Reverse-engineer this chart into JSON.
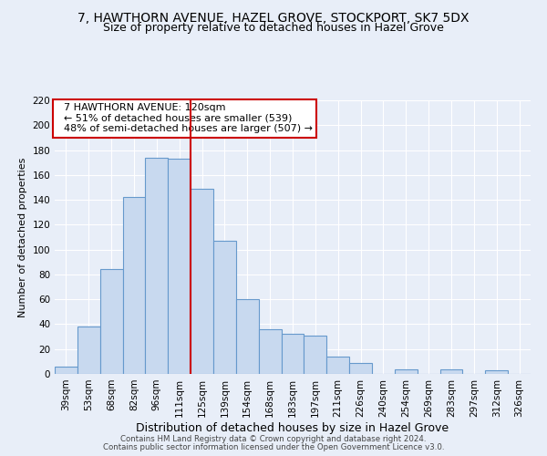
{
  "title": "7, HAWTHORN AVENUE, HAZEL GROVE, STOCKPORT, SK7 5DX",
  "subtitle": "Size of property relative to detached houses in Hazel Grove",
  "xlabel": "Distribution of detached houses by size in Hazel Grove",
  "ylabel": "Number of detached properties",
  "footer_line1": "Contains HM Land Registry data © Crown copyright and database right 2024.",
  "footer_line2": "Contains public sector information licensed under the Open Government Licence v3.0.",
  "bar_labels": [
    "39sqm",
    "53sqm",
    "68sqm",
    "82sqm",
    "96sqm",
    "111sqm",
    "125sqm",
    "139sqm",
    "154sqm",
    "168sqm",
    "183sqm",
    "197sqm",
    "211sqm",
    "226sqm",
    "240sqm",
    "254sqm",
    "269sqm",
    "283sqm",
    "297sqm",
    "312sqm",
    "326sqm"
  ],
  "bar_values": [
    6,
    38,
    84,
    142,
    174,
    173,
    149,
    107,
    60,
    36,
    32,
    31,
    14,
    9,
    0,
    4,
    0,
    4,
    0,
    3,
    0
  ],
  "bar_color": "#c8d9ef",
  "bar_edge_color": "#6699cc",
  "red_line_x": 5.5,
  "annotation_title": "7 HAWTHORN AVENUE: 120sqm",
  "annotation_line1": "← 51% of detached houses are smaller (539)",
  "annotation_line2": "48% of semi-detached houses are larger (507) →",
  "annotation_box_color": "white",
  "annotation_box_edge_color": "#cc0000",
  "ylim": [
    0,
    220
  ],
  "yticks": [
    0,
    20,
    40,
    60,
    80,
    100,
    120,
    140,
    160,
    180,
    200,
    220
  ],
  "background_color": "#e8eef8",
  "plot_background_color": "#e8eef8",
  "grid_color": "white",
  "title_fontsize": 10,
  "subtitle_fontsize": 9,
  "xlabel_fontsize": 9,
  "ylabel_fontsize": 8,
  "tick_fontsize": 7.5,
  "annotation_fontsize": 8,
  "footer_fontsize": 6.2
}
